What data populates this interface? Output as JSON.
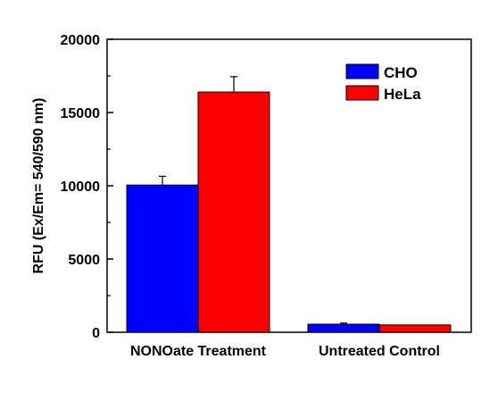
{
  "chart_data": {
    "type": "bar",
    "categories": [
      "NONOate Treatment",
      "Untreated Control"
    ],
    "series": [
      {
        "name": "CHO",
        "values": [
          10050,
          550
        ],
        "errors": [
          600,
          80
        ],
        "color": "#0000ff"
      },
      {
        "name": "HeLa",
        "values": [
          16400,
          500
        ],
        "errors": [
          1050,
          0
        ],
        "color": "#ff0000"
      }
    ],
    "title": "",
    "xlabel": "",
    "ylabel": "RFU (Ex/Em= 540/590 nm)",
    "ylim": [
      0,
      20000
    ],
    "yticks": [
      0,
      5000,
      10000,
      15000,
      20000
    ],
    "ytick_labels": [
      "0",
      "5000",
      "10000",
      "15000",
      "20000"
    ],
    "grid": false,
    "legend_position": "top-right"
  }
}
